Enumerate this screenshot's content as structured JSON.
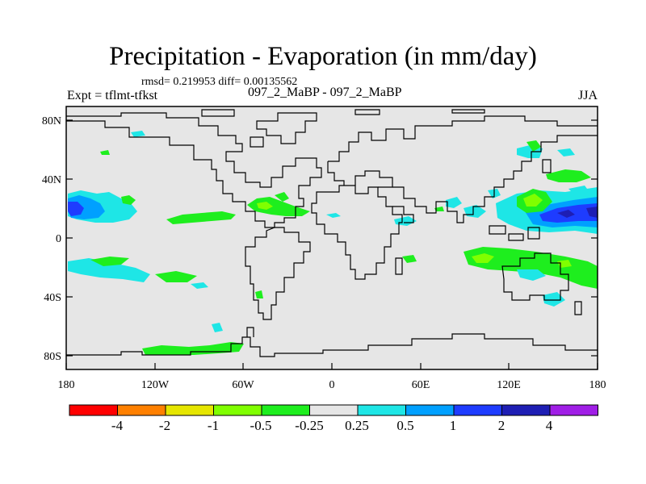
{
  "figure": {
    "title": "Precipitation - Evaporation (in mm/day)",
    "stats": "rmsd= 0.219953 diff= 0.00135562",
    "experiment": "Expt = tflmt-tfkst",
    "case": "097_2_MaBP - 097_2_MaBP",
    "season": "JJA"
  },
  "axes": {
    "x_ticks": [
      "180",
      "120W",
      "60W",
      "0",
      "60E",
      "120E",
      "180"
    ],
    "y_ticks": [
      "80N",
      "40N",
      "0",
      "40S",
      "80S"
    ]
  },
  "colorbar": {
    "labels": [
      "-4",
      "-2",
      "-1",
      "-0.5",
      "-0.25",
      "0.25",
      "0.5",
      "1",
      "2",
      "4"
    ],
    "colors": [
      "#ff0000",
      "#ff8000",
      "#e6e600",
      "#80ff00",
      "#1eee1e",
      "#e6e6e6",
      "#1ee6e6",
      "#00a0ff",
      "#1e3cff",
      "#1e1eb4",
      "#a01ee6"
    ]
  },
  "colors": {
    "background": "#e6e6e6",
    "coast": "#000000"
  }
}
